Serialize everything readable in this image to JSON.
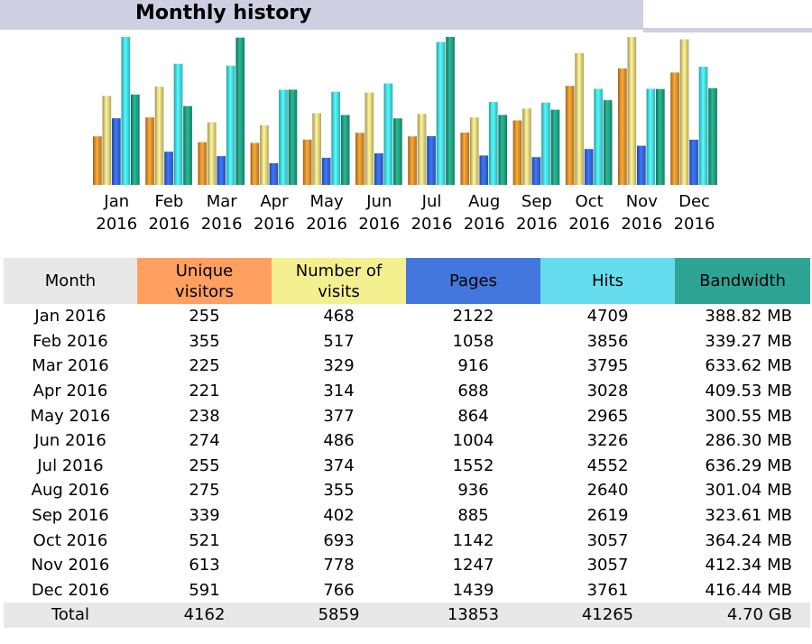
{
  "header": {
    "title": "Monthly history"
  },
  "colors": {
    "unique": "#e0902c",
    "visits": "#e6d27e",
    "pages": "#3366dd",
    "hits": "#44dde6",
    "bandwidth": "#1f9f80",
    "head_unique": "#ffa060",
    "head_visits": "#f4f090",
    "head_pages": "#4477dd",
    "head_hits": "#66ddee",
    "head_bw": "#2ea495"
  },
  "chart_data": {
    "type": "bar",
    "categories": [
      "Jan 2016",
      "Feb 2016",
      "Mar 2016",
      "Apr 2016",
      "May 2016",
      "Jun 2016",
      "Jul 2016",
      "Aug 2016",
      "Sep 2016",
      "Oct 2016",
      "Nov 2016",
      "Dec 2016"
    ],
    "tick_labels": [
      {
        "month": "Jan",
        "year": "2016"
      },
      {
        "month": "Feb",
        "year": "2016"
      },
      {
        "month": "Mar",
        "year": "2016"
      },
      {
        "month": "Apr",
        "year": "2016"
      },
      {
        "month": "May",
        "year": "2016"
      },
      {
        "month": "Jun",
        "year": "2016"
      },
      {
        "month": "Jul",
        "year": "2016"
      },
      {
        "month": "Aug",
        "year": "2016"
      },
      {
        "month": "Sep",
        "year": "2016"
      },
      {
        "month": "Oct",
        "year": "2016"
      },
      {
        "month": "Nov",
        "year": "2016"
      },
      {
        "month": "Dec",
        "year": "2016"
      }
    ],
    "series": [
      {
        "name": "Unique visitors",
        "values": [
          255,
          355,
          225,
          221,
          238,
          274,
          255,
          275,
          339,
          521,
          613,
          591
        ]
      },
      {
        "name": "Number of visits",
        "values": [
          468,
          517,
          329,
          314,
          377,
          486,
          374,
          355,
          402,
          693,
          778,
          766
        ]
      },
      {
        "name": "Pages",
        "values": [
          2122,
          1058,
          916,
          688,
          864,
          1004,
          1552,
          936,
          885,
          1142,
          1247,
          1439
        ]
      },
      {
        "name": "Hits",
        "values": [
          4709,
          3856,
          3795,
          3028,
          2965,
          3226,
          4552,
          2640,
          2619,
          3057,
          3057,
          3761
        ]
      },
      {
        "name": "Bandwidth",
        "values": [
          388.82,
          339.27,
          633.62,
          409.53,
          300.55,
          286.3,
          636.29,
          301.04,
          323.61,
          364.24,
          412.34,
          416.44
        ]
      }
    ],
    "grid": false,
    "legend": "none"
  },
  "table": {
    "headers": {
      "month": "Month",
      "unique_1": "Unique",
      "unique_2": "visitors",
      "visits_1": "Number of",
      "visits_2": "visits",
      "pages": "Pages",
      "hits": "Hits",
      "bandwidth": "Bandwidth"
    },
    "rows": [
      {
        "month": "Jan 2016",
        "unique": "255",
        "visits": "468",
        "pages": "2122",
        "hits": "4709",
        "bandwidth": "388.82 MB"
      },
      {
        "month": "Feb 2016",
        "unique": "355",
        "visits": "517",
        "pages": "1058",
        "hits": "3856",
        "bandwidth": "339.27 MB"
      },
      {
        "month": "Mar 2016",
        "unique": "225",
        "visits": "329",
        "pages": "916",
        "hits": "3795",
        "bandwidth": "633.62 MB"
      },
      {
        "month": "Apr 2016",
        "unique": "221",
        "visits": "314",
        "pages": "688",
        "hits": "3028",
        "bandwidth": "409.53 MB"
      },
      {
        "month": "May 2016",
        "unique": "238",
        "visits": "377",
        "pages": "864",
        "hits": "2965",
        "bandwidth": "300.55 MB"
      },
      {
        "month": "Jun 2016",
        "unique": "274",
        "visits": "486",
        "pages": "1004",
        "hits": "3226",
        "bandwidth": "286.30 MB"
      },
      {
        "month": "Jul 2016",
        "unique": "255",
        "visits": "374",
        "pages": "1552",
        "hits": "4552",
        "bandwidth": "636.29 MB"
      },
      {
        "month": "Aug 2016",
        "unique": "275",
        "visits": "355",
        "pages": "936",
        "hits": "2640",
        "bandwidth": "301.04 MB"
      },
      {
        "month": "Sep 2016",
        "unique": "339",
        "visits": "402",
        "pages": "885",
        "hits": "2619",
        "bandwidth": "323.61 MB"
      },
      {
        "month": "Oct 2016",
        "unique": "521",
        "visits": "693",
        "pages": "1142",
        "hits": "3057",
        "bandwidth": "364.24 MB"
      },
      {
        "month": "Nov 2016",
        "unique": "613",
        "visits": "778",
        "pages": "1247",
        "hits": "3057",
        "bandwidth": "412.34 MB"
      },
      {
        "month": "Dec 2016",
        "unique": "591",
        "visits": "766",
        "pages": "1439",
        "hits": "3761",
        "bandwidth": "416.44 MB"
      }
    ],
    "total": {
      "month": "Total",
      "unique": "4162",
      "visits": "5859",
      "pages": "13853",
      "hits": "41265",
      "bandwidth": "4.70 GB"
    }
  }
}
